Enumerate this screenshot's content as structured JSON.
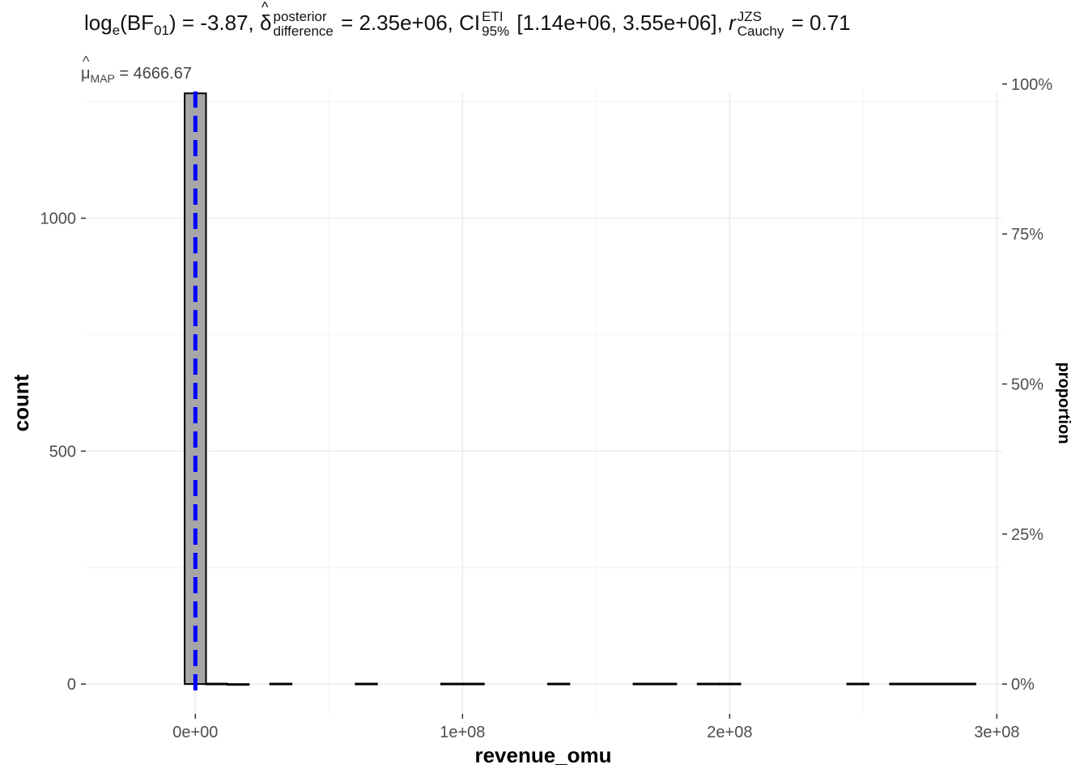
{
  "title": {
    "bf_prefix": "log",
    "bf_base": "e",
    "bf_main": "(BF",
    "bf_sub": "01",
    "bf_close": ")",
    "bf_value": " = -3.87,",
    "delta_symbol": "δ",
    "delta_sup": "posterior",
    "delta_sub": "difference",
    "delta_value": " = 2.35e+06,",
    "ci_label": "CI",
    "ci_sup": "ETI",
    "ci_sub": "95%",
    "ci_value": " [1.14e+06, 3.55e+06],",
    "r_symbol": "r",
    "r_sup": "JZS",
    "r_sub": "Cauchy",
    "r_value": " = 0.71"
  },
  "subtitle": {
    "mu_symbol": "μ",
    "mu_sub": "MAP",
    "mu_value": " = 4666.67"
  },
  "colors": {
    "bar_fill": "#a6a6a6",
    "bar_stroke": "#000000",
    "centrality_line": "#0000ff",
    "grid_major": "#ebebeb",
    "grid_minor": "#f5f5f5"
  },
  "chart_data": {
    "type": "bar",
    "xlabel": "revenue_omu",
    "ylabel": "count",
    "y2label": "proportion",
    "xlim": [
      -41000000,
      302000000
    ],
    "ylim": [
      -64,
      1272
    ],
    "x_ticks": [
      {
        "value": 0,
        "label": "0e+00"
      },
      {
        "value": 100000000,
        "label": "1e+08"
      },
      {
        "value": 200000000,
        "label": "2e+08"
      },
      {
        "value": 300000000,
        "label": "3e+08"
      }
    ],
    "y_ticks": [
      {
        "value": 0,
        "label": "0"
      },
      {
        "value": 500,
        "label": "500"
      },
      {
        "value": 1000,
        "label": "1000"
      }
    ],
    "y2_ticks": [
      {
        "value": 0,
        "label": "0%"
      },
      {
        "value": 0.25,
        "label": "25%"
      },
      {
        "value": 0.5,
        "label": "50%"
      },
      {
        "value": 0.75,
        "label": "75%"
      },
      {
        "value": 1.0,
        "label": "100%"
      }
    ],
    "y2_max_count": 1288,
    "bin_width": 8000000,
    "bins": [
      {
        "x0": -4000000,
        "x1": 4000000,
        "count": 1268
      },
      {
        "x0": 4000000,
        "x1": 12000000,
        "count": 1
      },
      {
        "x0": 12000000,
        "x1": 20000000,
        "count": 0
      },
      {
        "x0": 28000000,
        "x1": 36000000,
        "count": 1
      },
      {
        "x0": 60000000,
        "x1": 68000000,
        "count": 1
      },
      {
        "x0": 92000000,
        "x1": 108000000,
        "count": 1
      },
      {
        "x0": 132000000,
        "x1": 140000000,
        "count": 1
      },
      {
        "x0": 164000000,
        "x1": 180000000,
        "count": 1
      },
      {
        "x0": 188000000,
        "x1": 196000000,
        "count": 1
      },
      {
        "x0": 196000000,
        "x1": 204000000,
        "count": 1
      },
      {
        "x0": 244000000,
        "x1": 252000000,
        "count": 1
      },
      {
        "x0": 260000000,
        "x1": 292000000,
        "count": 1
      }
    ],
    "centrality_value": 4666.67,
    "grid": true
  }
}
